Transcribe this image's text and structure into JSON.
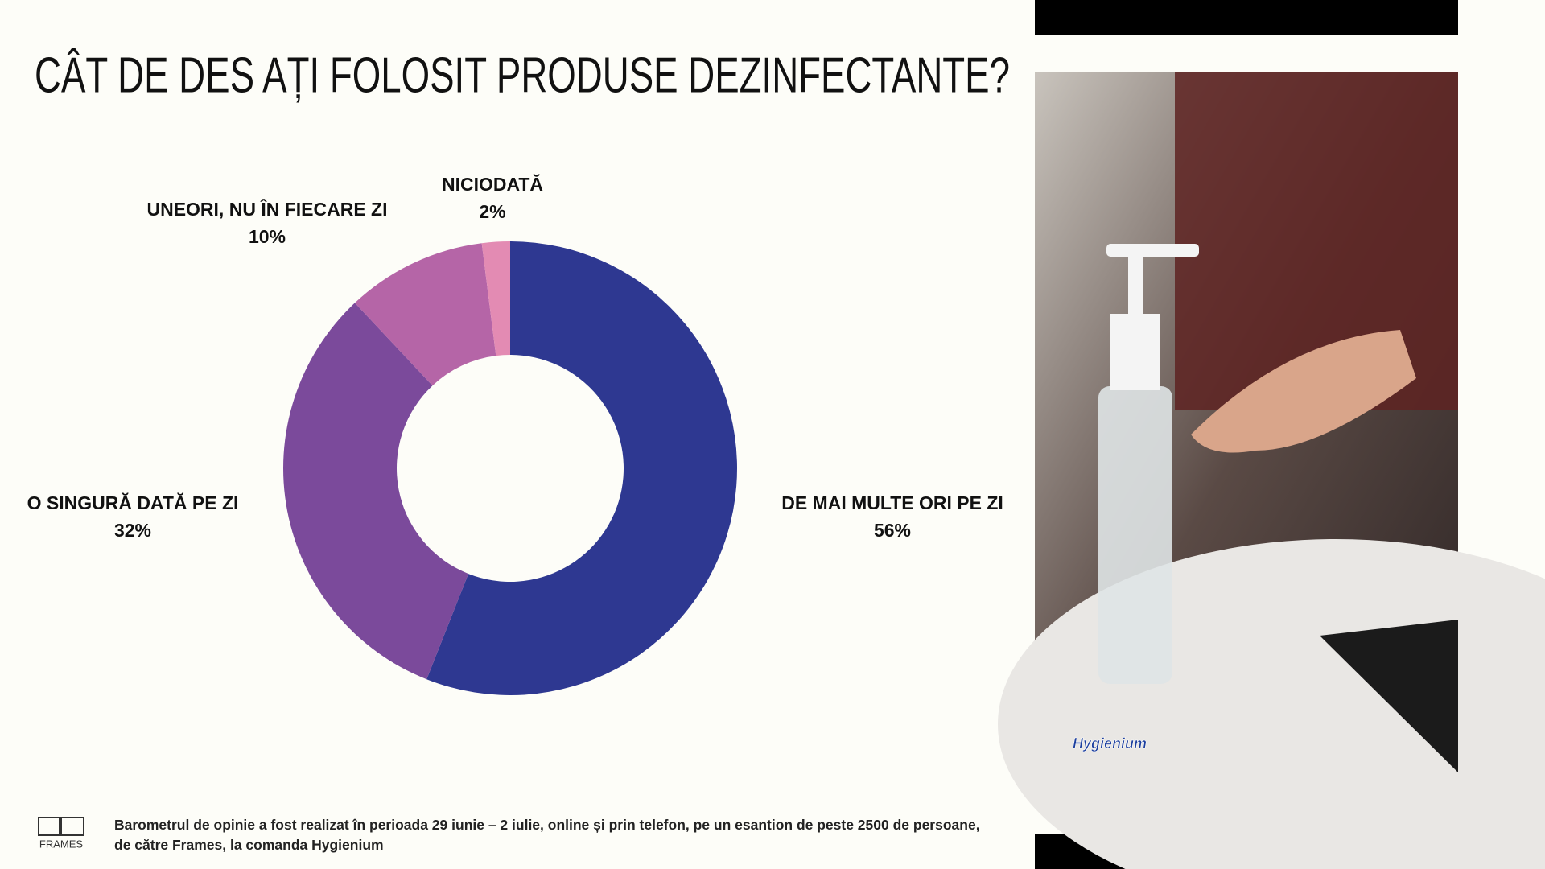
{
  "chart_data": {
    "type": "pie",
    "donut": true,
    "title": "CÂT DE DES AȚI FOLOSIT PRODUSE DEZINFECTANTE?",
    "categories": [
      "DE MAI MULTE ORI PE ZI",
      "O SINGURĂ DATĂ PE ZI",
      "UNEORI, NU ÎN FIECARE ZI",
      "NICIODATĂ"
    ],
    "values": [
      56,
      32,
      10,
      2
    ],
    "value_labels": [
      "56%",
      "32%",
      "10%",
      "2%"
    ],
    "colors": [
      "#2e3891",
      "#7b4a9b",
      "#b565a7",
      "#e38bb3"
    ]
  },
  "footnote": "Barometrul de opinie a fost realizat în perioada 29 iunie – 2 iulie, online și prin telefon, pe un esantion de peste 2500 de persoane, de către Frames, la comanda Hygienium",
  "logo": "FRAMES",
  "photo_logo": "Hygienium"
}
